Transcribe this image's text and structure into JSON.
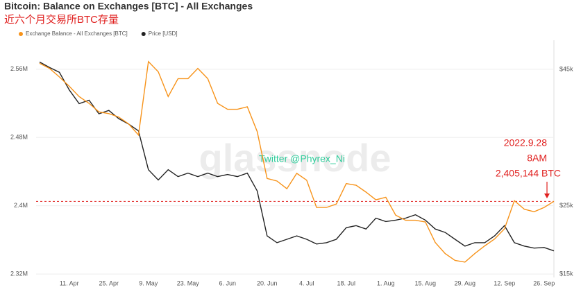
{
  "chart_data": {
    "type": "line",
    "title": "Bitcoin: Balance on Exchanges [BTC] - All Exchanges",
    "subtitle": "近六个月交易所BTC存量",
    "watermark": "glassnode",
    "annotations": [
      "Twitter @Phyrex_Ni",
      "2022.9.28",
      "8AM",
      "2,405,144 BTC"
    ],
    "categories": [
      null,
      null,
      null,
      "11. Apr",
      null,
      null,
      null,
      "25. Apr",
      null,
      null,
      null,
      "9. May",
      null,
      null,
      null,
      "23. May",
      null,
      null,
      null,
      "6. Jun",
      null,
      null,
      null,
      "20. Jun",
      null,
      null,
      null,
      "4. Jul",
      null,
      null,
      null,
      "18. Jul",
      null,
      null,
      null,
      "1. Aug",
      null,
      null,
      null,
      "15. Aug",
      null,
      null,
      null,
      "29. Aug",
      null,
      null,
      null,
      "12. Sep",
      null,
      null,
      null,
      "26. Sep",
      null
    ],
    "series": [
      {
        "name": "Exchange Balance - All Exchanges [BTC]",
        "color": "#f7931a",
        "axis": "y",
        "values": [
          2567000,
          2561000,
          2551000,
          2540000,
          2528000,
          2520000,
          2510000,
          2508000,
          2504000,
          2496000,
          2483000,
          2569000,
          2557000,
          2528000,
          2549000,
          2549000,
          2561000,
          2549000,
          2520000,
          2513000,
          2513000,
          2516000,
          2487000,
          2432000,
          2429000,
          2420000,
          2438000,
          2430000,
          2398000,
          2398000,
          2402000,
          2426000,
          2424000,
          2416000,
          2407000,
          2410000,
          2389000,
          2383000,
          2383000,
          2381000,
          2357000,
          2344000,
          2336000,
          2334000,
          2344000,
          2353000,
          2361000,
          2373000,
          2406000,
          2396000,
          2393000,
          2398000,
          2405144
        ]
      },
      {
        "name": "Price [USD]",
        "color": "#222222",
        "axis": "y2",
        "values": [
          46100,
          45300,
          44600,
          42000,
          40000,
          40500,
          38500,
          39000,
          37800,
          37000,
          36000,
          30300,
          28800,
          30300,
          29300,
          29800,
          29300,
          29800,
          29300,
          29600,
          29300,
          29800,
          27200,
          20600,
          19600,
          20100,
          20600,
          20100,
          19400,
          19600,
          20100,
          21800,
          22100,
          21600,
          23200,
          22700,
          22900,
          23200,
          23700,
          22900,
          21600,
          21100,
          20100,
          19100,
          19600,
          19600,
          20600,
          22100,
          19600,
          19100,
          18800,
          18900,
          18400
        ]
      }
    ],
    "ylim": [
      2316000,
      2594000
    ],
    "yticks": [
      {
        "value": 2320000,
        "label": "2.32M"
      },
      {
        "value": 2400000,
        "label": "2.4M"
      },
      {
        "value": 2480000,
        "label": "2.48M"
      },
      {
        "value": 2560000,
        "label": "2.56M"
      }
    ],
    "y2lim": [
      14500,
      49300
    ],
    "y2ticks": [
      {
        "value": 15000,
        "label": "$15k"
      },
      {
        "value": 25000,
        "label": "$25k"
      },
      {
        "value": 45000,
        "label": "$45k"
      }
    ],
    "grid": true
  }
}
